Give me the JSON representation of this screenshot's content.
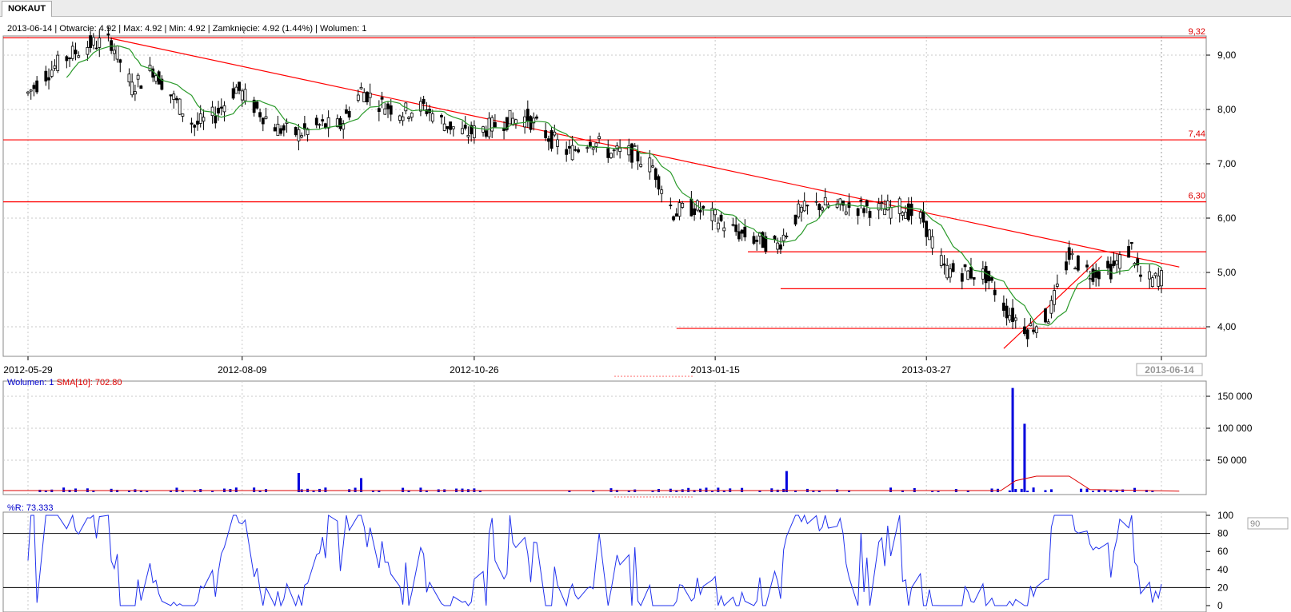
{
  "tab": {
    "label": "NOKAUT"
  },
  "info_bar": {
    "date": "2013-06-14",
    "open": "Otwarcie: 4.92",
    "max": "Max: 4.92",
    "min": "Min: 4.92",
    "close": "Zamknięcie: 4.92 (1.44%)",
    "volume": "Wolumen: 1"
  },
  "volume_header": {
    "vol_label": "Wolumen: 1",
    "sma_label": "SMA[10]: 702.80"
  },
  "wr_header": {
    "label": "%R: 73.333"
  },
  "wr_input": {
    "value": "90"
  },
  "colors": {
    "price": "#000000",
    "ma": "#2a9a2a",
    "lines": "#ff0000",
    "volume": "#0000dd",
    "wr": "#2233ee",
    "grid": "#c8c8c8"
  },
  "chart_data": [
    {
      "type": "candlestick",
      "title": "NOKAUT",
      "x_tick_labels": [
        "2012-05-29",
        "2012-08-09",
        "2012-10-26",
        "2013-01-15",
        "2013-03-27",
        "2013-06-14"
      ],
      "y_tick_labels": [
        "4,00",
        "5,00",
        "6,00",
        "7,00",
        "8,00",
        "9,00"
      ],
      "ylim": [
        3.5,
        9.4
      ],
      "grid": true,
      "moving_average_color": "green",
      "price_levels": [
        {
          "value": 9.32,
          "label": "9,32"
        },
        {
          "value": 7.44,
          "label": "7,44"
        },
        {
          "value": 6.3,
          "label": "6,30"
        },
        {
          "value": 5.38,
          "label": ""
        },
        {
          "value": 4.7,
          "label": ""
        },
        {
          "value": 3.97,
          "label": ""
        }
      ],
      "trendlines": [
        {
          "from": [
            "2012-06-25",
            9.32
          ],
          "to": [
            "2013-06-20",
            5.1
          ]
        },
        {
          "from": [
            "2013-04-22",
            3.6
          ],
          "to": [
            "2013-05-25",
            5.3
          ]
        }
      ],
      "close_series": [
        [
          "2012-05-29",
          8.3
        ],
        [
          "2012-06-05",
          8.7
        ],
        [
          "2012-06-12",
          9.0
        ],
        [
          "2012-06-19",
          9.2
        ],
        [
          "2012-06-26",
          9.25
        ],
        [
          "2012-07-03",
          8.4
        ],
        [
          "2012-07-10",
          8.75
        ],
        [
          "2012-07-17",
          8.2
        ],
        [
          "2012-07-24",
          7.7
        ],
        [
          "2012-07-31",
          7.9
        ],
        [
          "2012-08-07",
          8.4
        ],
        [
          "2012-08-14",
          8.0
        ],
        [
          "2012-08-21",
          7.65
        ],
        [
          "2012-08-28",
          7.55
        ],
        [
          "2012-09-04",
          7.7
        ],
        [
          "2012-09-11",
          7.7
        ],
        [
          "2012-09-18",
          8.35
        ],
        [
          "2012-09-25",
          8.1
        ],
        [
          "2012-10-02",
          7.95
        ],
        [
          "2012-10-09",
          8.05
        ],
        [
          "2012-10-16",
          7.75
        ],
        [
          "2012-10-23",
          7.55
        ],
        [
          "2012-10-30",
          7.65
        ],
        [
          "2012-11-06",
          7.8
        ],
        [
          "2012-11-13",
          7.85
        ],
        [
          "2012-11-20",
          7.5
        ],
        [
          "2012-11-27",
          7.2
        ],
        [
          "2012-12-04",
          7.45
        ],
        [
          "2012-12-11",
          7.2
        ],
        [
          "2012-12-18",
          7.2
        ],
        [
          "2012-12-25",
          6.95
        ],
        [
          "2013-01-01",
          6.1
        ],
        [
          "2013-01-08",
          6.2
        ],
        [
          "2013-01-15",
          6.0
        ],
        [
          "2013-01-22",
          5.75
        ],
        [
          "2013-01-29",
          5.6
        ],
        [
          "2013-02-05",
          5.5
        ],
        [
          "2013-02-12",
          6.1
        ],
        [
          "2013-02-19",
          6.25
        ],
        [
          "2013-02-26",
          6.2
        ],
        [
          "2013-03-05",
          6.2
        ],
        [
          "2013-03-12",
          6.15
        ],
        [
          "2013-03-19",
          6.2
        ],
        [
          "2013-03-26",
          5.95
        ],
        [
          "2013-04-02",
          5.05
        ],
        [
          "2013-04-09",
          5.0
        ],
        [
          "2013-04-16",
          4.95
        ],
        [
          "2013-04-23",
          4.3
        ],
        [
          "2013-04-30",
          3.95
        ],
        [
          "2013-05-07",
          4.2
        ],
        [
          "2013-05-14",
          5.3
        ],
        [
          "2013-05-21",
          5.0
        ],
        [
          "2013-05-28",
          5.05
        ],
        [
          "2013-06-04",
          5.45
        ],
        [
          "2013-06-07",
          4.9
        ],
        [
          "2013-06-11",
          4.85
        ],
        [
          "2013-06-14",
          4.92
        ]
      ],
      "last_close": 4.92
    },
    {
      "type": "bar",
      "title": "Wolumen",
      "y_tick_labels": [
        "50 000",
        "100 000",
        "150 000"
      ],
      "ylim": [
        0,
        170000
      ],
      "series_sma_label": "SMA[10]",
      "sma_last": 702.8,
      "notable_values": [
        {
          "date": "2012-08-28",
          "value": 30000
        },
        {
          "date": "2012-09-18",
          "value": 22000
        },
        {
          "date": "2013-02-08",
          "value": 33000
        },
        {
          "date": "2013-04-25",
          "value": 163000
        },
        {
          "date": "2013-04-29",
          "value": 107000
        }
      ]
    },
    {
      "type": "line",
      "title": "%R",
      "y_tick_labels": [
        "0",
        "20",
        "40",
        "60",
        "80",
        "100"
      ],
      "ylim": [
        0,
        100
      ],
      "levels": [
        20,
        80
      ],
      "last_value": 73.333
    }
  ]
}
